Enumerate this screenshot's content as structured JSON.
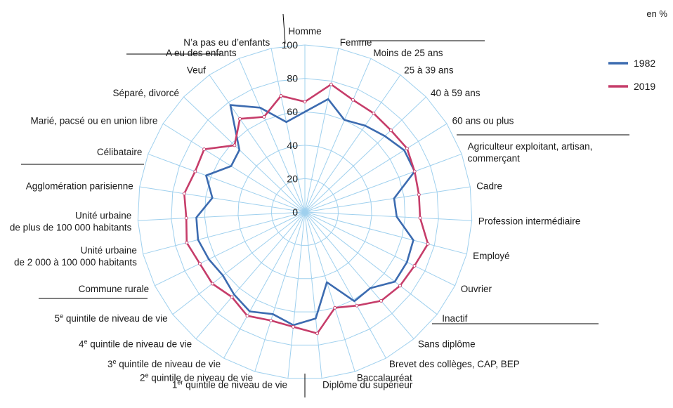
{
  "chart_data": {
    "type": "radar",
    "unit": "en %",
    "rlim": [
      0,
      100
    ],
    "radial_ticks": [
      0,
      20,
      40,
      60,
      80,
      100
    ],
    "categories": [
      "Homme",
      "Femme",
      "Moins de 25 ans",
      "25 à 39 ans",
      "40 à 59 ans",
      "60 ans ou plus",
      "Agriculteur exploitant, artisan, commerçant",
      "Cadre",
      "Profession intermédiaire",
      "Employé",
      "Ouvrier",
      "Inactif",
      "Sans diplôme",
      "Brevet des collèges, CAP, BEP",
      "Baccalauréat",
      "Diplôme du supérieur",
      "1er quintile de niveau de vie",
      "2e quintile de niveau de vie",
      "3e quintile de niveau de vie",
      "4e quintile de niveau de vie",
      "5e quintile de niveau de vie",
      "Commune rurale",
      "Unité urbaine de 2 000 à 100 000 habitants",
      "Unité urbaine de plus de 100 000 habitants",
      "Agglomération parisienne",
      "Célibataire",
      "Marié, pacsé ou en union libre",
      "Séparé, divorcé",
      "Veuf",
      "A eu des enfants",
      "N’a pas eu d’enfants"
    ],
    "series": [
      {
        "name": "1982",
        "color": "#3c6bb0",
        "values": [
          60,
          69,
          60,
          63,
          66,
          70,
          70,
          54,
          55,
          67,
          68,
          68,
          60,
          61,
          44,
          64,
          68,
          64,
          68,
          65,
          62,
          64,
          66,
          65,
          56,
          63,
          52,
          54,
          78,
          68,
          55
        ]
      },
      {
        "name": "2019",
        "color": "#c63d6a",
        "values": [
          66,
          78,
          73,
          72,
          71,
          72,
          70,
          69,
          69,
          76,
          73,
          72,
          70,
          64,
          60,
          73,
          69,
          68,
          71,
          67,
          70,
          70,
          73,
          71,
          73,
          70,
          71,
          58,
          68,
          62,
          71
        ]
      }
    ],
    "legend": "right",
    "labels_display": [
      {
        "text": "Homme"
      },
      {
        "text": "Femme"
      },
      {
        "text": "Moins de 25 ans"
      },
      {
        "text": "25 à 39 ans"
      },
      {
        "text": "40 à 59 ans"
      },
      {
        "text": "60 ans ou plus"
      },
      {
        "text": "Agriculteur exploitant, artisan,",
        "text2": "commerçant"
      },
      {
        "text": "Cadre"
      },
      {
        "text": "Profession intermédiaire"
      },
      {
        "text": "Employé"
      },
      {
        "text": "Ouvrier"
      },
      {
        "text": "Inactif"
      },
      {
        "text": "Sans diplôme"
      },
      {
        "text": "Brevet des collèges, CAP, BEP"
      },
      {
        "text": "Baccalauréat"
      },
      {
        "text": "Diplôme du supérieur"
      },
      {
        "pre": "1",
        "sup": "er",
        "post": " quintile de niveau de vie"
      },
      {
        "pre": "2",
        "sup": "e",
        "post": " quintile de niveau de vie"
      },
      {
        "pre": "3",
        "sup": "e",
        "post": " quintile de niveau de vie"
      },
      {
        "pre": "4",
        "sup": "e",
        "post": " quintile de niveau de vie"
      },
      {
        "pre": "5",
        "sup": "e",
        "post": " quintile de niveau de vie"
      },
      {
        "text": "Commune rurale"
      },
      {
        "text": "Unité urbaine",
        "text2": "de 2 000 à 100 000 habitants"
      },
      {
        "text": "Unité urbaine",
        "text2": "de plus de 100 000 habitants"
      },
      {
        "text": "Agglomération parisienne"
      },
      {
        "text": "Célibataire"
      },
      {
        "text": "Marié, pacsé ou en union libre"
      },
      {
        "text": "Séparé, divorcé"
      },
      {
        "text": "Veuf"
      },
      {
        "text": "A eu des enfants"
      },
      {
        "text": "N’a pas eu d’enfants"
      }
    ],
    "grid_color": "#9fd0ee"
  }
}
